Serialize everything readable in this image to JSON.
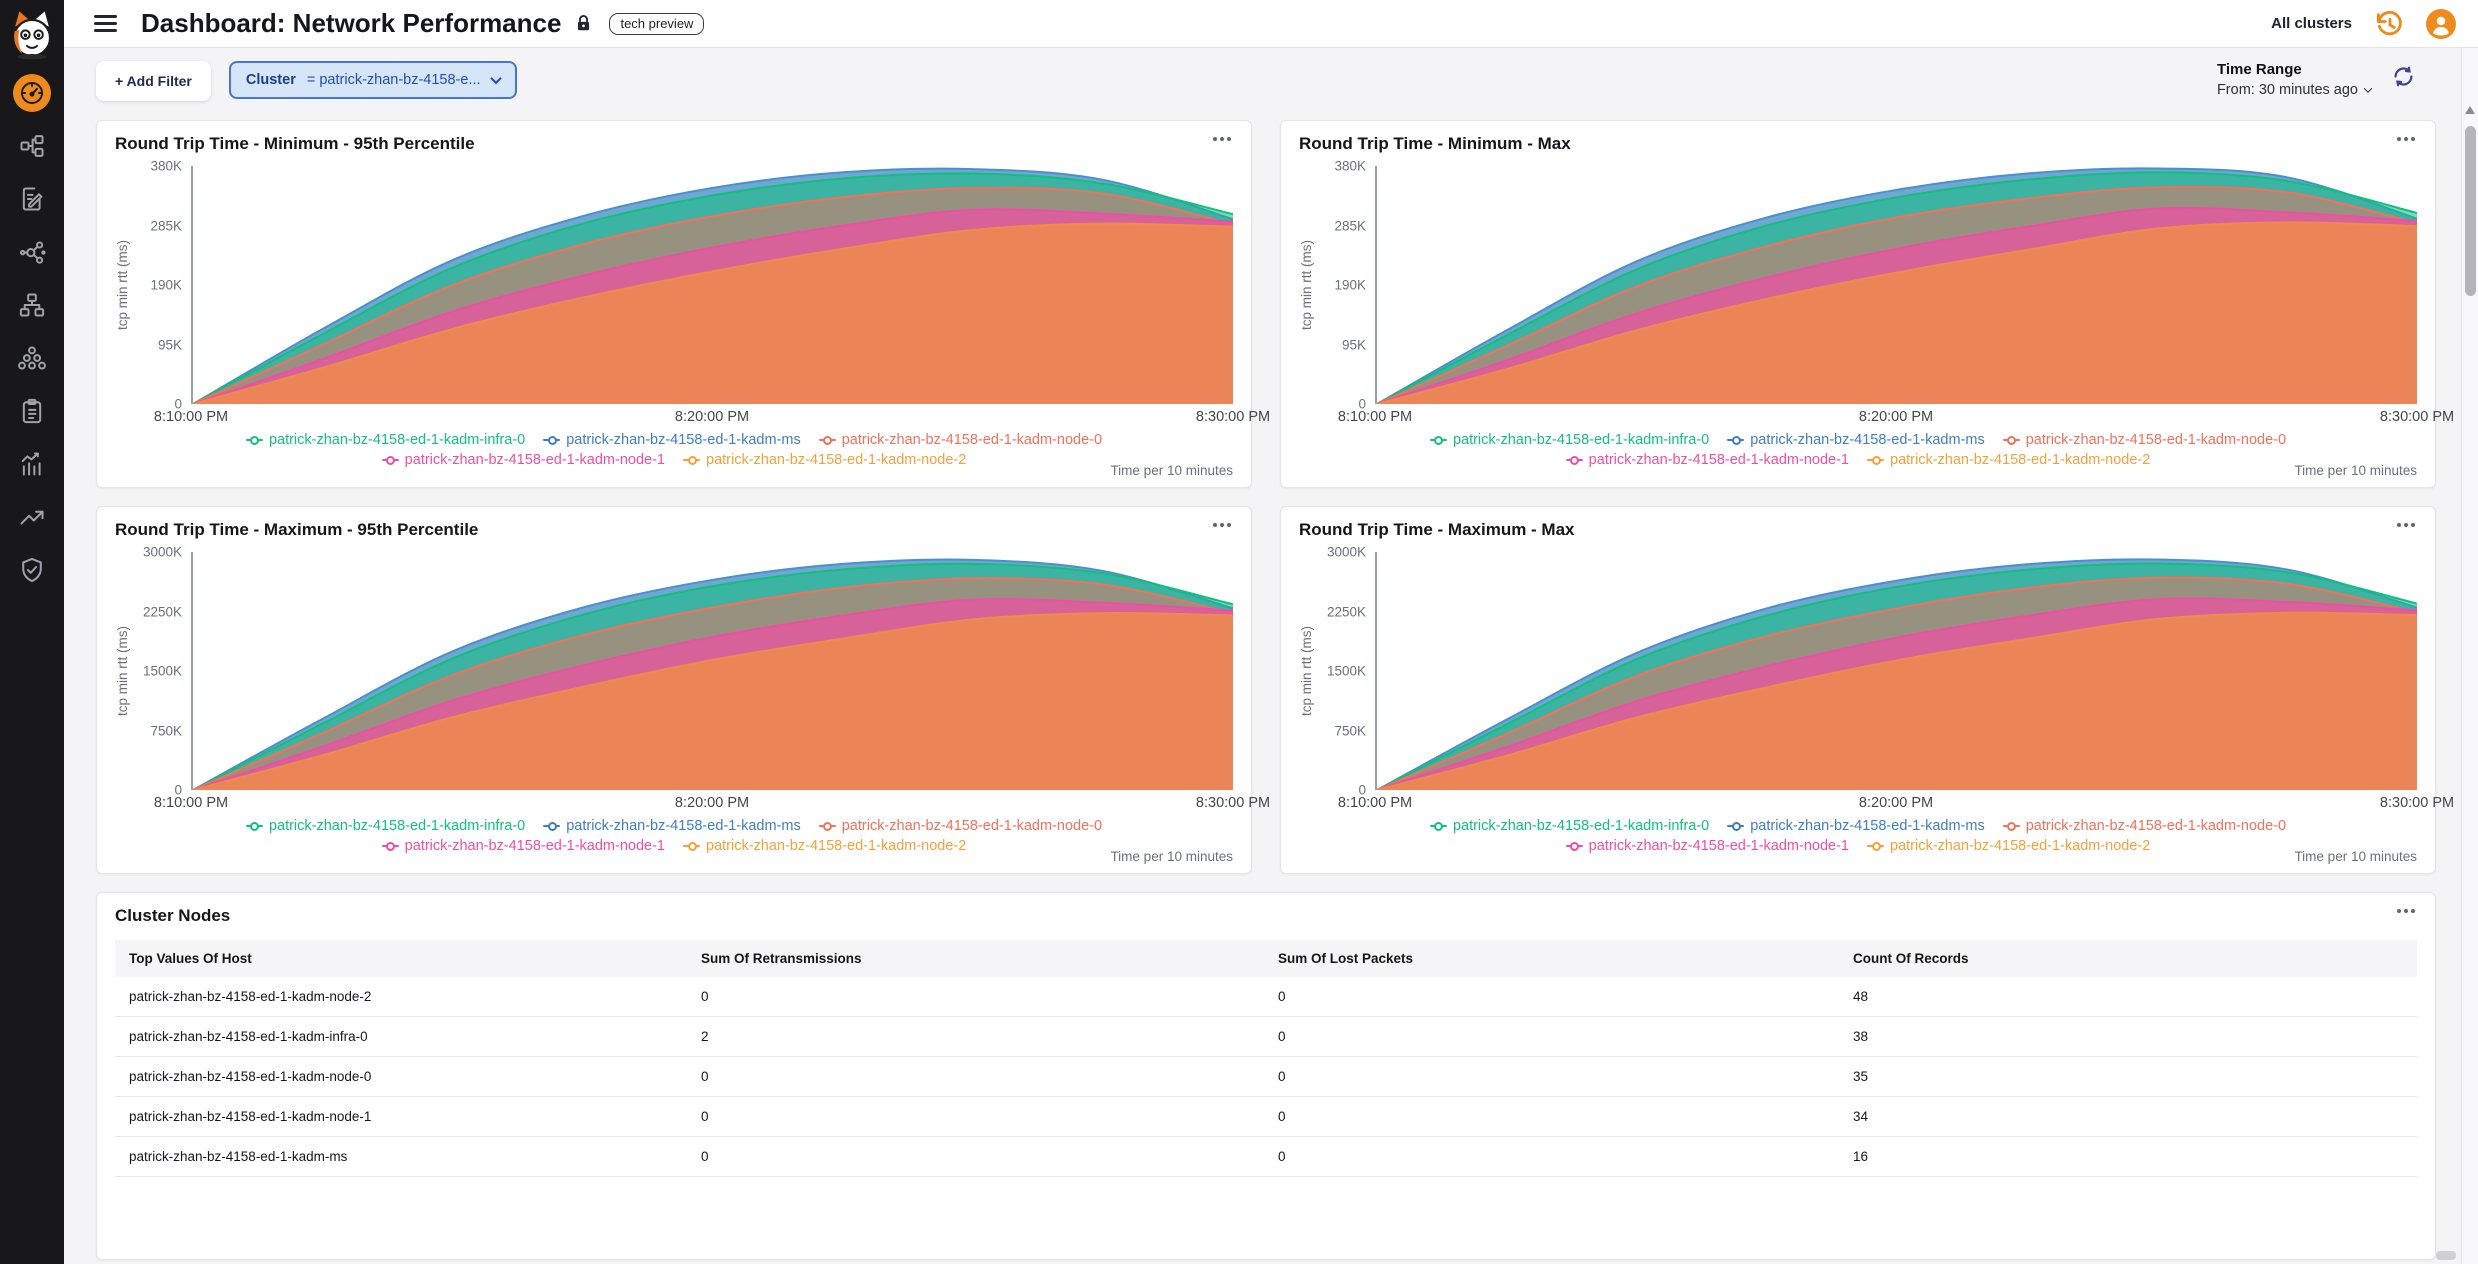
{
  "topbar": {
    "title": "Dashboard: Network Performance",
    "tech_badge": "tech preview",
    "all_clusters_label": "All clusters"
  },
  "sidebar": {
    "items": [
      {
        "icon": "gauge-icon",
        "active": true
      },
      {
        "icon": "topology-icon",
        "active": false
      },
      {
        "icon": "document-edit-icon",
        "active": false
      },
      {
        "icon": "share-network-icon",
        "active": false
      },
      {
        "icon": "sitemap-icon",
        "active": false
      },
      {
        "icon": "cluster-rings-icon",
        "active": false
      },
      {
        "icon": "clipboard-icon",
        "active": false
      },
      {
        "icon": "bar-chart-icon",
        "active": false
      },
      {
        "icon": "trend-arrow-icon",
        "active": false
      },
      {
        "icon": "shield-check-icon",
        "active": false
      }
    ]
  },
  "filter_bar": {
    "add_filter_label": "+ Add Filter",
    "cluster_field": "Cluster",
    "cluster_value": "= patrick-zhan-bz-4158-e...",
    "time_range_title": "Time Range",
    "time_range_value": "From: 30 minutes ago"
  },
  "colors": {
    "accent_orange": "#ef8b1d",
    "sidebar_bg": "#18181b",
    "page_bg": "#f4f4f6",
    "filter_pill_bg": "#d7e5f8",
    "filter_pill_border": "#4a72d8",
    "series_infra": "#12bf7c",
    "series_ms": "#3e7dc4",
    "series_node0": "#f4705a",
    "series_node1": "#ee4fa4",
    "series_node2": "#f5a03c"
  },
  "chart_data": {
    "note": "see charts[] — four area charts share x axis 8:10-8:30 PM per 10 minutes"
  },
  "charts": [
    {
      "title": "Round Trip Time - Minimum - 95th Percentile",
      "type": "area",
      "y_label": "tcp min rtt (ms)",
      "y_ticks": [
        "380K",
        "285K",
        "190K",
        "95K",
        "0"
      ],
      "y_max": 380,
      "x_ticks": [
        "8:10:00 PM",
        "8:20:00 PM",
        "8:30:00 PM"
      ],
      "x_minutes": [
        0,
        2.5,
        5,
        7.5,
        10,
        12.5,
        15,
        17.5,
        20
      ],
      "footnote": "Time per 10 minutes",
      "series": [
        {
          "name": "patrick-zhan-bz-4158-ed-1-kadm-infra-0",
          "color": "#12bf7c",
          "fill": "#12bf7c",
          "fill_opacity": 0.55,
          "z": 1,
          "values": [
            0,
            112,
            218,
            288,
            333,
            360,
            368,
            352,
            303
          ]
        },
        {
          "name": "patrick-zhan-bz-4158-ed-1-kadm-ms",
          "color": "#3e7dc4",
          "fill": "#4a90c9",
          "fill_opacity": 0.8,
          "z": 0,
          "values": [
            0,
            120,
            230,
            300,
            345,
            370,
            375,
            358,
            295
          ]
        },
        {
          "name": "patrick-zhan-bz-4158-ed-1-kadm-node-0",
          "color": "#f4705a",
          "fill": "#f4705a",
          "fill_opacity": 0.5,
          "z": 2,
          "values": [
            0,
            95,
            190,
            255,
            300,
            330,
            345,
            336,
            287
          ]
        },
        {
          "name": "patrick-zhan-bz-4158-ed-1-kadm-node-1",
          "color": "#ee4fa4",
          "fill": "#ee4fa4",
          "fill_opacity": 0.72,
          "z": 3,
          "values": [
            0,
            72,
            148,
            205,
            250,
            285,
            310,
            304,
            291
          ]
        },
        {
          "name": "patrick-zhan-bz-4158-ed-1-kadm-node-2",
          "color": "#f5a03c",
          "fill": "#ee8a4d",
          "fill_opacity": 0.88,
          "z": 4,
          "values": [
            0,
            58,
            120,
            170,
            212,
            248,
            278,
            288,
            283
          ]
        }
      ]
    },
    {
      "title": "Round Trip Time - Minimum - Max",
      "type": "area",
      "y_label": "tcp min rtt (ms)",
      "y_ticks": [
        "380K",
        "285K",
        "190K",
        "95K",
        "0"
      ],
      "y_max": 380,
      "x_ticks": [
        "8:10:00 PM",
        "8:20:00 PM",
        "8:30:00 PM"
      ],
      "x_minutes": [
        0,
        2.5,
        5,
        7.5,
        10,
        12.5,
        15,
        17.5,
        20
      ],
      "footnote": "Time per 10 minutes",
      "series": [
        {
          "name": "patrick-zhan-bz-4158-ed-1-kadm-infra-0",
          "color": "#12bf7c",
          "fill": "#12bf7c",
          "fill_opacity": 0.55,
          "z": 1,
          "values": [
            0,
            110,
            215,
            285,
            330,
            358,
            370,
            356,
            305
          ]
        },
        {
          "name": "patrick-zhan-bz-4158-ed-1-kadm-ms",
          "color": "#3e7dc4",
          "fill": "#4a90c9",
          "fill_opacity": 0.8,
          "z": 0,
          "values": [
            0,
            118,
            228,
            298,
            342,
            368,
            376,
            362,
            296
          ]
        },
        {
          "name": "patrick-zhan-bz-4158-ed-1-kadm-node-0",
          "color": "#f4705a",
          "fill": "#f4705a",
          "fill_opacity": 0.5,
          "z": 2,
          "values": [
            0,
            93,
            188,
            252,
            298,
            328,
            346,
            338,
            289
          ]
        },
        {
          "name": "patrick-zhan-bz-4158-ed-1-kadm-node-1",
          "color": "#ee4fa4",
          "fill": "#ee4fa4",
          "fill_opacity": 0.72,
          "z": 3,
          "values": [
            0,
            70,
            145,
            202,
            248,
            283,
            312,
            306,
            292
          ]
        },
        {
          "name": "patrick-zhan-bz-4158-ed-1-kadm-node-2",
          "color": "#f5a03c",
          "fill": "#ee8a4d",
          "fill_opacity": 0.88,
          "z": 4,
          "values": [
            0,
            56,
            118,
            168,
            210,
            246,
            280,
            290,
            284
          ]
        }
      ]
    },
    {
      "title": "Round Trip Time - Maximum - 95th Percentile",
      "type": "area",
      "y_label": "tcp min rtt (ms)",
      "y_ticks": [
        "3000K",
        "2250K",
        "1500K",
        "750K",
        "0"
      ],
      "y_max": 3000,
      "x_ticks": [
        "8:10:00 PM",
        "8:20:00 PM",
        "8:30:00 PM"
      ],
      "x_minutes": [
        0,
        2.5,
        5,
        7.5,
        10,
        12.5,
        15,
        17.5,
        20
      ],
      "footnote": "Time per 10 minutes",
      "series": [
        {
          "name": "patrick-zhan-bz-4158-ed-1-kadm-infra-0",
          "color": "#12bf7c",
          "fill": "#12bf7c",
          "fill_opacity": 0.55,
          "z": 1,
          "values": [
            0,
            840,
            1660,
            2210,
            2570,
            2780,
            2850,
            2730,
            2340
          ]
        },
        {
          "name": "patrick-zhan-bz-4158-ed-1-kadm-ms",
          "color": "#3e7dc4",
          "fill": "#4a90c9",
          "fill_opacity": 0.8,
          "z": 0,
          "values": [
            0,
            900,
            1750,
            2300,
            2650,
            2850,
            2900,
            2760,
            2290
          ]
        },
        {
          "name": "patrick-zhan-bz-4158-ed-1-kadm-node-0",
          "color": "#f4705a",
          "fill": "#f4705a",
          "fill_opacity": 0.5,
          "z": 2,
          "values": [
            0,
            720,
            1450,
            1950,
            2300,
            2550,
            2670,
            2590,
            2230
          ]
        },
        {
          "name": "patrick-zhan-bz-4158-ed-1-kadm-node-1",
          "color": "#ee4fa4",
          "fill": "#ee4fa4",
          "fill_opacity": 0.72,
          "z": 3,
          "values": [
            0,
            550,
            1130,
            1570,
            1930,
            2200,
            2400,
            2360,
            2260
          ]
        },
        {
          "name": "patrick-zhan-bz-4158-ed-1-kadm-node-2",
          "color": "#f5a03c",
          "fill": "#ee8a4d",
          "fill_opacity": 0.88,
          "z": 4,
          "values": [
            0,
            440,
            920,
            1300,
            1640,
            1910,
            2150,
            2230,
            2200
          ]
        }
      ]
    },
    {
      "title": "Round Trip Time - Maximum - Max",
      "type": "area",
      "y_label": "tcp min rtt (ms)",
      "y_ticks": [
        "3000K",
        "2250K",
        "1500K",
        "750K",
        "0"
      ],
      "y_max": 3000,
      "x_ticks": [
        "8:10:00 PM",
        "8:20:00 PM",
        "8:30:00 PM"
      ],
      "x_minutes": [
        0,
        2.5,
        5,
        7.5,
        10,
        12.5,
        15,
        17.5,
        20
      ],
      "footnote": "Time per 10 minutes",
      "series": [
        {
          "name": "patrick-zhan-bz-4158-ed-1-kadm-infra-0",
          "color": "#12bf7c",
          "fill": "#12bf7c",
          "fill_opacity": 0.55,
          "z": 1,
          "values": [
            0,
            830,
            1650,
            2200,
            2560,
            2775,
            2855,
            2745,
            2350
          ]
        },
        {
          "name": "patrick-zhan-bz-4158-ed-1-kadm-ms",
          "color": "#3e7dc4",
          "fill": "#4a90c9",
          "fill_opacity": 0.8,
          "z": 0,
          "values": [
            0,
            890,
            1730,
            2290,
            2640,
            2845,
            2905,
            2780,
            2300
          ]
        },
        {
          "name": "patrick-zhan-bz-4158-ed-1-kadm-node-0",
          "color": "#f4705a",
          "fill": "#f4705a",
          "fill_opacity": 0.5,
          "z": 2,
          "values": [
            0,
            710,
            1440,
            1940,
            2290,
            2545,
            2675,
            2600,
            2240
          ]
        },
        {
          "name": "patrick-zhan-bz-4158-ed-1-kadm-node-1",
          "color": "#ee4fa4",
          "fill": "#ee4fa4",
          "fill_opacity": 0.72,
          "z": 3,
          "values": [
            0,
            545,
            1120,
            1560,
            1920,
            2195,
            2405,
            2370,
            2265
          ]
        },
        {
          "name": "patrick-zhan-bz-4158-ed-1-kadm-node-2",
          "color": "#f5a03c",
          "fill": "#ee8a4d",
          "fill_opacity": 0.88,
          "z": 4,
          "values": [
            0,
            435,
            915,
            1295,
            1635,
            1905,
            2155,
            2235,
            2205
          ]
        }
      ]
    }
  ],
  "table": {
    "title": "Cluster Nodes",
    "columns": [
      "Top Values Of Host",
      "Sum Of Retransmissions",
      "Sum Of Lost Packets",
      "Count Of Records"
    ],
    "rows": [
      [
        "patrick-zhan-bz-4158-ed-1-kadm-node-2",
        "0",
        "0",
        "48"
      ],
      [
        "patrick-zhan-bz-4158-ed-1-kadm-infra-0",
        "2",
        "0",
        "38"
      ],
      [
        "patrick-zhan-bz-4158-ed-1-kadm-node-0",
        "0",
        "0",
        "35"
      ],
      [
        "patrick-zhan-bz-4158-ed-1-kadm-node-1",
        "0",
        "0",
        "34"
      ],
      [
        "patrick-zhan-bz-4158-ed-1-kadm-ms",
        "0",
        "0",
        "16"
      ]
    ]
  }
}
